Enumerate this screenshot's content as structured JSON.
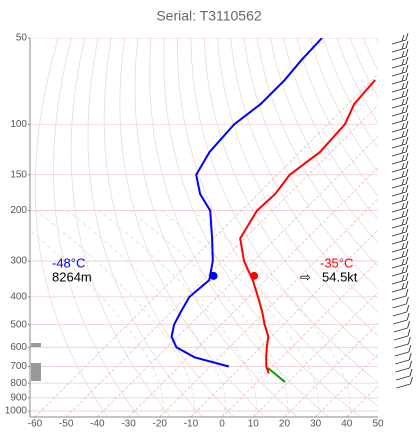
{
  "chart_data": {
    "type": "skewt",
    "title": "Serial: T3110562",
    "pressure": [
      740,
      700,
      650,
      600,
      550,
      500,
      450,
      400,
      350,
      300,
      250,
      200,
      175,
      150,
      125,
      100,
      85,
      70,
      60,
      50
    ],
    "series": [
      {
        "color": "#ff0000",
        "values": [
          1,
          -2,
          -5,
          -8,
          -11,
          -16,
          -21,
          -27,
          -34,
          -43,
          -51.5,
          -55,
          -54.5,
          -56,
          -53.6,
          -54.5,
          -58,
          -59,
          null,
          null
        ]
      },
      {
        "color": "#0000ff",
        "values": [
          null,
          -14,
          -28,
          -37,
          -42,
          -45,
          -47,
          -49,
          -48,
          -53,
          -60.5,
          -70,
          -78.6,
          -86,
          -89,
          -90,
          -88,
          -88,
          -89,
          -89.5
        ]
      }
    ],
    "xlim": [
      -60,
      50
    ],
    "xticks": [
      -60,
      -50,
      -40,
      -30,
      -20,
      -10,
      0,
      10,
      20,
      30,
      40,
      50
    ],
    "ylim": [
      1050,
      50
    ],
    "yticks": [
      50,
      100,
      150,
      200,
      300,
      400,
      500,
      600,
      700,
      800,
      900,
      1000
    ],
    "log_y": true,
    "grid": true,
    "cursor": {
      "pressure": 338,
      "temp": -35,
      "dewpoint": -48,
      "temp_label": "-35°C",
      "dewpoint_label": "-48°C",
      "height": "8264m",
      "arrow": "⇨",
      "wind": "54.5kt"
    }
  }
}
